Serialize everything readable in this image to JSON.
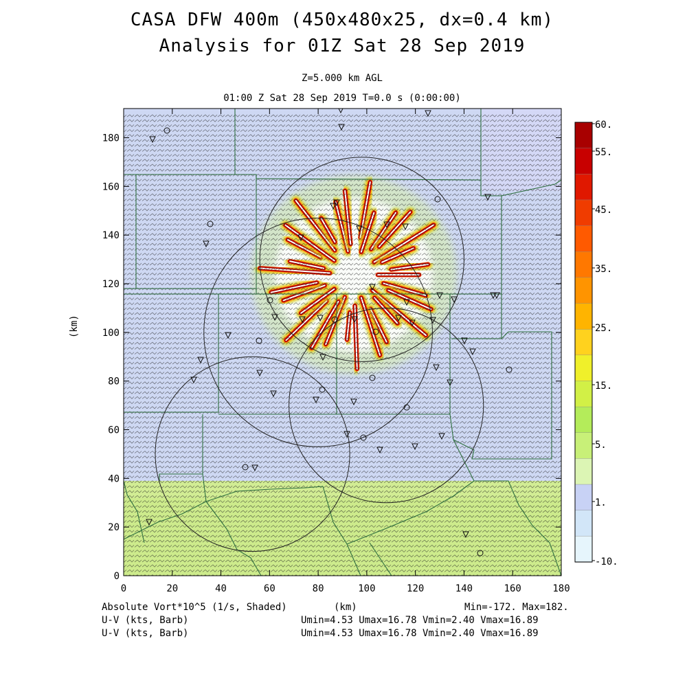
{
  "header": {
    "title_line1": "CASA DFW 400m (450x480x25, dx=0.4 km)",
    "title_line2": "Analysis for 01Z Sat 28 Sep 2019",
    "level": "Z=5.000 km AGL",
    "time": "01:00 Z Sat 28 Sep 2019    T=0.0 s (0:00:00)"
  },
  "axes": {
    "x_label": "(km)",
    "y_label": "(km)",
    "x_ticks": [
      "0",
      "20",
      "40",
      "60",
      "80",
      "100",
      "120",
      "140",
      "160",
      "180"
    ],
    "y_ticks": [
      "0",
      "20",
      "40",
      "60",
      "80",
      "100",
      "120",
      "140",
      "160",
      "180"
    ],
    "x_range": [
      0,
      180
    ],
    "y_range": [
      0,
      192
    ]
  },
  "colorbar": {
    "labels": [
      "60.",
      "55.",
      "45.",
      "35.",
      "25.",
      "15.",
      "5.",
      "1.",
      "-10."
    ],
    "colors": [
      "#a80000",
      "#c80000",
      "#e01800",
      "#f03c00",
      "#ff5a00",
      "#ff7800",
      "#ff9400",
      "#ffb400",
      "#ffd21e",
      "#f0f02a",
      "#d2f046",
      "#b4ec5a",
      "#c8f078",
      "#dcf5b4",
      "#c8d2f5",
      "#d2e6f8",
      "#e6f5fc"
    ]
  },
  "footer": {
    "field": "Absolute Vort*10^5 (1/s, Shaded)",
    "xunit": "(km)",
    "minmax": "Min=-172. Max=182.",
    "barb1": "U-V (kts, Barb)",
    "barb2": "U-V (kts, Barb)",
    "uv1": "Umin=4.53 Umax=16.78 Vmin=2.40 Vmax=16.89",
    "uv2": "Umin=4.53 Umax=16.78 Vmin=2.40 Vmax=16.89"
  },
  "map": {
    "background_color": "#c4d8f0",
    "south_color": "#cdeb8c",
    "county_color": "#2f6f3f",
    "radar_rings_km": [
      {
        "x": 98,
        "y": 130,
        "r": 42
      },
      {
        "x": 80,
        "y": 100,
        "r": 47
      },
      {
        "x": 108,
        "y": 70,
        "r": 40
      },
      {
        "x": 53,
        "y": 50,
        "r": 40
      }
    ]
  }
}
